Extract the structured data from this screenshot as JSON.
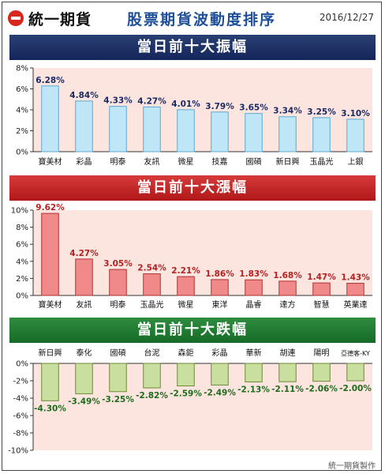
{
  "header": {
    "brand": "統一期貨",
    "title": "股票期貨波動度排序",
    "date": "2016/12/27"
  },
  "footer": "統一期貨製作",
  "colors": {
    "amplitude_fill": "#bfe6f6",
    "amplitude_stroke": "#5aa9d6",
    "gain_fill": "#f08a8a",
    "gain_stroke": "#b03030",
    "loss_fill": "#c9dfa0",
    "loss_stroke": "#6d8a35",
    "plot_bg": "#fde5df",
    "gain_label": "#b22222",
    "loss_label": "#1e6b1e"
  },
  "chart_data": [
    {
      "type": "bar",
      "title": "當日前十大振幅",
      "categories": [
        "寶美材",
        "彩晶",
        "明泰",
        "友訊",
        "微星",
        "技嘉",
        "國碩",
        "新日興",
        "玉晶光",
        "上銀"
      ],
      "values": [
        6.28,
        4.84,
        4.33,
        4.27,
        4.01,
        3.79,
        3.65,
        3.34,
        3.25,
        3.1
      ],
      "data_labels": [
        "6.28%",
        "4.84%",
        "4.33%",
        "4.27%",
        "4.01%",
        "3.79%",
        "3.65%",
        "3.34%",
        "3.25%",
        "3.10%"
      ],
      "ylim": [
        0,
        8
      ],
      "yticks": [
        0,
        2,
        4,
        6,
        8
      ],
      "ytick_labels": [
        "0%",
        "2%",
        "4%",
        "6%",
        "8%"
      ],
      "grid": false
    },
    {
      "type": "bar",
      "title": "當日前十大漲幅",
      "categories": [
        "寶美材",
        "友訊",
        "明泰",
        "玉晶光",
        "微星",
        "東洋",
        "晶睿",
        "達方",
        "智慧",
        "英業達"
      ],
      "values": [
        9.62,
        4.27,
        3.05,
        2.54,
        2.21,
        1.86,
        1.83,
        1.68,
        1.47,
        1.43
      ],
      "data_labels": [
        "9.62%",
        "4.27%",
        "3.05%",
        "2.54%",
        "2.21%",
        "1.86%",
        "1.83%",
        "1.68%",
        "1.47%",
        "1.43%"
      ],
      "ylim": [
        0,
        10
      ],
      "yticks": [
        0,
        2,
        4,
        6,
        8,
        10
      ],
      "ytick_labels": [
        "0%",
        "2%",
        "4%",
        "6%",
        "8%",
        "10%"
      ],
      "grid": false
    },
    {
      "type": "bar",
      "title": "當日前十大跌幅",
      "categories": [
        "新日興",
        "泰化",
        "國碩",
        "台泥",
        "森鉅",
        "彩晶",
        "華新",
        "胡連",
        "陽明",
        "亞德客-KY"
      ],
      "values": [
        -4.3,
        -3.49,
        -3.25,
        -2.82,
        -2.59,
        -2.49,
        -2.13,
        -2.11,
        -2.06,
        -2.0
      ],
      "data_labels": [
        "-4.30%",
        "-3.49%",
        "-3.25%",
        "-2.82%",
        "-2.59%",
        "-2.49%",
        "-2.13%",
        "-2.11%",
        "-2.06%",
        "-2.00%"
      ],
      "ylim": [
        -10,
        0
      ],
      "yticks": [
        0,
        -2,
        -4,
        -6,
        -8,
        -10
      ],
      "ytick_labels": [
        "0%",
        "-2%",
        "-4%",
        "-6%",
        "-8%",
        "-10%"
      ],
      "grid": false
    }
  ]
}
